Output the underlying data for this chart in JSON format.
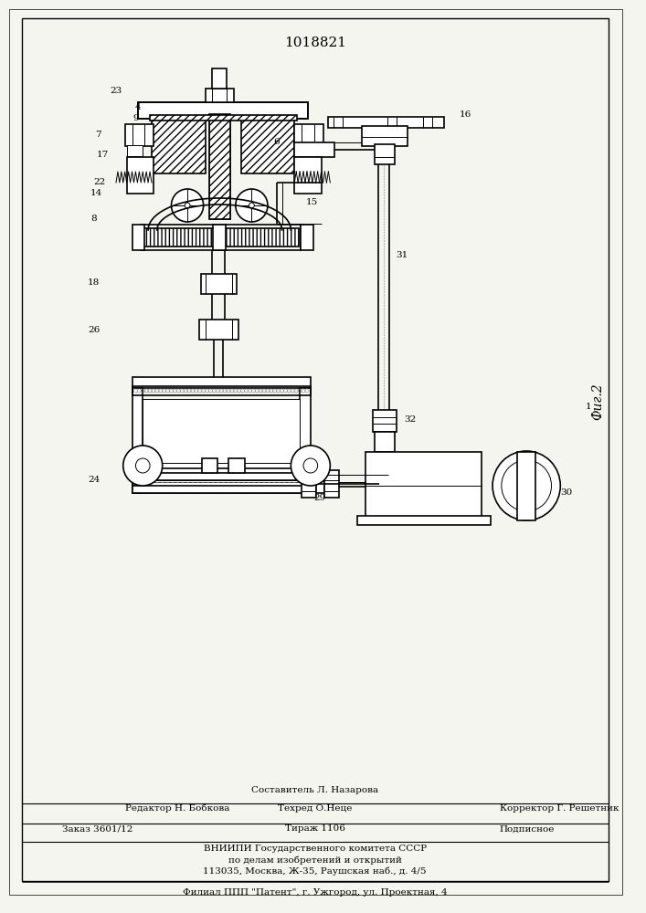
{
  "title": "1018821",
  "fig_label": "Фиг.2",
  "background_color": "#f5f5f0",
  "line_color": "#000000",
  "editor_line1": "Составитель Л. Назарова",
  "editor_line2_left": "Редактор Н. Бобкова",
  "editor_line2_mid": "Техред О.Неце",
  "editor_line2_right": "Корректор Г. Решетник",
  "order_left": "Заказ 3601/12",
  "order_mid": "Тираж 1106",
  "order_right": "Подписное",
  "org_line1": "ВНИИПИ Государственного комитета СССР",
  "org_line2": "по делам изобретений и открытий",
  "org_line3": "113035, Москва, Ж-35, Раушская наб., д. 4/5",
  "branch_line": "Филиал ППП \"Патент\", г. Ужгород, ул. Проектная, 4"
}
